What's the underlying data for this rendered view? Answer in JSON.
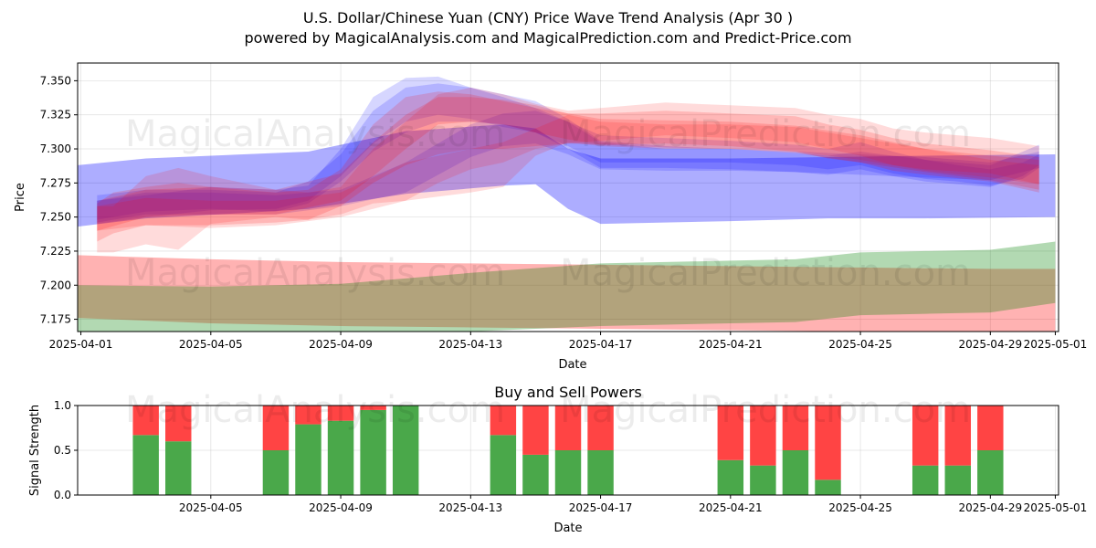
{
  "title_line1": "U.S. Dollar/Chinese Yuan (CNY) Price Wave Trend Analysis (Apr 30 )",
  "title_line2": "powered by MagicalAnalysis.com and MagicalPrediction.com and Predict-Price.com",
  "watermarks": [
    "MagicalAnalysis.com",
    "MagicalPrediction.com"
  ],
  "colors": {
    "blue": "#0000ff",
    "red": "#ff0000",
    "green": "#008000",
    "buy": "#4aa84a",
    "sell": "#ff4444"
  },
  "chart_data": [
    {
      "type": "area",
      "title": "",
      "xlabel": "Date",
      "ylabel": "Price",
      "xlim_days": [
        -0.1,
        30.1
      ],
      "ylim": [
        7.166,
        7.363
      ],
      "yticks": [
        7.175,
        7.2,
        7.225,
        7.25,
        7.275,
        7.3,
        7.325,
        7.35
      ],
      "ytick_labels": [
        "7.175",
        "7.200",
        "7.225",
        "7.250",
        "7.275",
        "7.300",
        "7.325",
        "7.350"
      ],
      "xticks_days": [
        0,
        4,
        8,
        12,
        16,
        20,
        24,
        28,
        30
      ],
      "xtick_labels": [
        "2025-04-01",
        "2025-04-05",
        "2025-04-09",
        "2025-04-13",
        "2025-04-17",
        "2025-04-21",
        "2025-04-25",
        "2025-04-29",
        "2025-05-01"
      ],
      "bands": [
        {
          "name": "blue-wide",
          "color": "blue",
          "opacity": 0.32,
          "x": [
            -0.1,
            2,
            5,
            7,
            10,
            13,
            14,
            15,
            16,
            20,
            23,
            26,
            30
          ],
          "upper": [
            7.288,
            7.293,
            7.296,
            7.298,
            7.313,
            7.318,
            7.315,
            7.3,
            7.293,
            7.293,
            7.294,
            7.295,
            7.296
          ],
          "lower": [
            7.243,
            7.249,
            7.253,
            7.256,
            7.267,
            7.273,
            7.274,
            7.256,
            7.245,
            7.247,
            7.249,
            7.249,
            7.25
          ]
        },
        {
          "name": "blue-wave-1",
          "color": "blue",
          "opacity": 0.16,
          "x": [
            0.5,
            2,
            4,
            6,
            7,
            8,
            9,
            10,
            11,
            12,
            13,
            14,
            15,
            16,
            18,
            20,
            22,
            23,
            24,
            25,
            26,
            27,
            28,
            29,
            29.5
          ],
          "upper": [
            7.262,
            7.266,
            7.272,
            7.27,
            7.273,
            7.3,
            7.338,
            7.352,
            7.353,
            7.345,
            7.338,
            7.33,
            7.32,
            7.31,
            7.308,
            7.306,
            7.303,
            7.3,
            7.305,
            7.298,
            7.292,
            7.288,
            7.285,
            7.29,
            7.296
          ],
          "lower": [
            7.245,
            7.25,
            7.255,
            7.256,
            7.262,
            7.28,
            7.304,
            7.32,
            7.325,
            7.322,
            7.316,
            7.312,
            7.302,
            7.29,
            7.29,
            7.29,
            7.288,
            7.285,
            7.288,
            7.282,
            7.278,
            7.276,
            7.273,
            7.278,
            7.286
          ]
        },
        {
          "name": "blue-wave-2",
          "color": "blue",
          "opacity": 0.16,
          "x": [
            0.5,
            2,
            4,
            6,
            7,
            8,
            9,
            10,
            11,
            12,
            13,
            14,
            15,
            16,
            18,
            20,
            22,
            23,
            24,
            25,
            26,
            27,
            28,
            29,
            29.5
          ],
          "upper": [
            7.266,
            7.27,
            7.27,
            7.268,
            7.276,
            7.296,
            7.328,
            7.345,
            7.348,
            7.345,
            7.34,
            7.335,
            7.322,
            7.306,
            7.302,
            7.3,
            7.297,
            7.295,
            7.298,
            7.295,
            7.292,
            7.29,
            7.288,
            7.298,
            7.303
          ],
          "lower": [
            7.248,
            7.254,
            7.256,
            7.254,
            7.26,
            7.276,
            7.298,
            7.312,
            7.32,
            7.32,
            7.318,
            7.312,
            7.3,
            7.286,
            7.286,
            7.285,
            7.283,
            7.281,
            7.285,
            7.28,
            7.276,
            7.274,
            7.272,
            7.28,
            7.288
          ]
        },
        {
          "name": "blue-wave-3",
          "color": "blue",
          "opacity": 0.16,
          "x": [
            0.5,
            2,
            4,
            6,
            8,
            10,
            12,
            13,
            14,
            15,
            16,
            18,
            20,
            22,
            24,
            26,
            28,
            29.5
          ],
          "upper": [
            7.262,
            7.268,
            7.268,
            7.266,
            7.27,
            7.29,
            7.318,
            7.326,
            7.328,
            7.32,
            7.305,
            7.3,
            7.3,
            7.298,
            7.296,
            7.294,
            7.29,
            7.298
          ],
          "lower": [
            7.246,
            7.252,
            7.252,
            7.252,
            7.258,
            7.268,
            7.294,
            7.302,
            7.304,
            7.296,
            7.285,
            7.284,
            7.284,
            7.283,
            7.281,
            7.279,
            7.277,
            7.286
          ]
        },
        {
          "name": "red-wave-1",
          "color": "red",
          "opacity": 0.14,
          "x": [
            0.5,
            1,
            2,
            3,
            4,
            6,
            7,
            8,
            9,
            10,
            11,
            12,
            13,
            14,
            15,
            16,
            18,
            20,
            22,
            23,
            24,
            25,
            26,
            28,
            29.5
          ],
          "upper": [
            7.258,
            7.258,
            7.28,
            7.286,
            7.28,
            7.27,
            7.268,
            7.272,
            7.3,
            7.32,
            7.34,
            7.345,
            7.34,
            7.333,
            7.328,
            7.33,
            7.334,
            7.332,
            7.33,
            7.325,
            7.322,
            7.315,
            7.312,
            7.308,
            7.302
          ],
          "lower": [
            7.224,
            7.224,
            7.23,
            7.226,
            7.245,
            7.25,
            7.248,
            7.252,
            7.26,
            7.262,
            7.275,
            7.285,
            7.29,
            7.3,
            7.304,
            7.306,
            7.31,
            7.308,
            7.305,
            7.3,
            7.295,
            7.288,
            7.285,
            7.282,
            7.274
          ]
        },
        {
          "name": "red-wave-2",
          "color": "red",
          "opacity": 0.16,
          "x": [
            0.5,
            1,
            2,
            3,
            4,
            6,
            7,
            8,
            9,
            10,
            11,
            12,
            13,
            14,
            15,
            16,
            18,
            20,
            22,
            23,
            24,
            25,
            26,
            28,
            29.5
          ],
          "upper": [
            7.26,
            7.268,
            7.272,
            7.275,
            7.272,
            7.268,
            7.27,
            7.285,
            7.318,
            7.338,
            7.342,
            7.34,
            7.335,
            7.33,
            7.326,
            7.326,
            7.328,
            7.326,
            7.324,
            7.318,
            7.314,
            7.308,
            7.304,
            7.299,
            7.294
          ],
          "lower": [
            7.232,
            7.238,
            7.244,
            7.244,
            7.244,
            7.246,
            7.248,
            7.258,
            7.275,
            7.288,
            7.296,
            7.3,
            7.3,
            7.302,
            7.304,
            7.303,
            7.304,
            7.302,
            7.298,
            7.293,
            7.29,
            7.284,
            7.281,
            7.276,
            7.268
          ]
        },
        {
          "name": "red-wave-3",
          "color": "red",
          "opacity": 0.16,
          "x": [
            0.5,
            2,
            4,
            6,
            8,
            9,
            10,
            11,
            12,
            13,
            14,
            15,
            16,
            18,
            20,
            22,
            24,
            26,
            28,
            29.5
          ],
          "upper": [
            7.262,
            7.27,
            7.272,
            7.27,
            7.282,
            7.305,
            7.325,
            7.338,
            7.338,
            7.336,
            7.332,
            7.326,
            7.322,
            7.321,
            7.32,
            7.317,
            7.31,
            7.3,
            7.295,
            7.292
          ],
          "lower": [
            7.24,
            7.25,
            7.252,
            7.252,
            7.262,
            7.28,
            7.3,
            7.318,
            7.32,
            7.318,
            7.312,
            7.307,
            7.303,
            7.301,
            7.3,
            7.297,
            7.29,
            7.283,
            7.277,
            7.27
          ]
        },
        {
          "name": "red-wave-4",
          "color": "red",
          "opacity": 0.14,
          "x": [
            0.5,
            2,
            4,
            6,
            8,
            10,
            12,
            13,
            14,
            15,
            16,
            18,
            20,
            22,
            24,
            26,
            28,
            29.5
          ],
          "upper": [
            7.258,
            7.264,
            7.262,
            7.262,
            7.268,
            7.29,
            7.3,
            7.305,
            7.315,
            7.325,
            7.32,
            7.318,
            7.318,
            7.316,
            7.308,
            7.3,
            7.292,
            7.288
          ],
          "lower": [
            7.24,
            7.244,
            7.242,
            7.244,
            7.25,
            7.262,
            7.268,
            7.272,
            7.295,
            7.305,
            7.302,
            7.3,
            7.3,
            7.298,
            7.292,
            7.284,
            7.279,
            7.274
          ]
        },
        {
          "name": "red-long",
          "color": "red",
          "opacity": 0.3,
          "x": [
            -0.1,
            4,
            8,
            12,
            16,
            20,
            24,
            28,
            30
          ],
          "upper": [
            7.222,
            7.219,
            7.217,
            7.216,
            7.215,
            7.214,
            7.213,
            7.212,
            7.212
          ],
          "lower": [
            7.176,
            7.172,
            7.17,
            7.169,
            7.168,
            7.167,
            7.166,
            7.166,
            7.166
          ]
        },
        {
          "name": "green-long",
          "color": "green",
          "opacity": 0.3,
          "x": [
            -0.1,
            4,
            8,
            12,
            16,
            20,
            22,
            24,
            26,
            28,
            30
          ],
          "upper": [
            7.2,
            7.199,
            7.201,
            7.209,
            7.216,
            7.218,
            7.219,
            7.224,
            7.225,
            7.226,
            7.232
          ],
          "lower": [
            7.166,
            7.166,
            7.166,
            7.166,
            7.17,
            7.172,
            7.173,
            7.178,
            7.179,
            7.18,
            7.187
          ]
        }
      ]
    },
    {
      "type": "bar",
      "title": "Buy and Sell Powers",
      "xlabel": "Date",
      "ylabel": "Signal Strength",
      "xlim_days": [
        -0.1,
        30.1
      ],
      "ylim": [
        0,
        1
      ],
      "yticks": [
        0,
        0.5,
        1
      ],
      "ytick_labels": [
        "0.0",
        "0.5",
        "1.0"
      ],
      "xticks_days": [
        4,
        8,
        12,
        16,
        20,
        24,
        28,
        30
      ],
      "xtick_labels": [
        "2025-04-05",
        "2025-04-09",
        "2025-04-13",
        "2025-04-17",
        "2025-04-21",
        "2025-04-25",
        "2025-04-29",
        "2025-05-01"
      ],
      "days": [
        2,
        3,
        6,
        7,
        8,
        9,
        10,
        13,
        14,
        15,
        16,
        20,
        21,
        22,
        23,
        26,
        27,
        28
      ],
      "buy": [
        0.67,
        0.6,
        0.5,
        0.79,
        0.83,
        0.95,
        1.0,
        0.67,
        0.45,
        0.5,
        0.5,
        0.39,
        0.33,
        0.5,
        0.17,
        0.33,
        0.33,
        0.5
      ],
      "sell": [
        0.33,
        0.4,
        0.5,
        0.21,
        0.17,
        0.05,
        0.0,
        0.33,
        0.55,
        0.5,
        0.5,
        0.61,
        0.67,
        0.5,
        0.83,
        0.67,
        0.67,
        0.5
      ]
    }
  ]
}
